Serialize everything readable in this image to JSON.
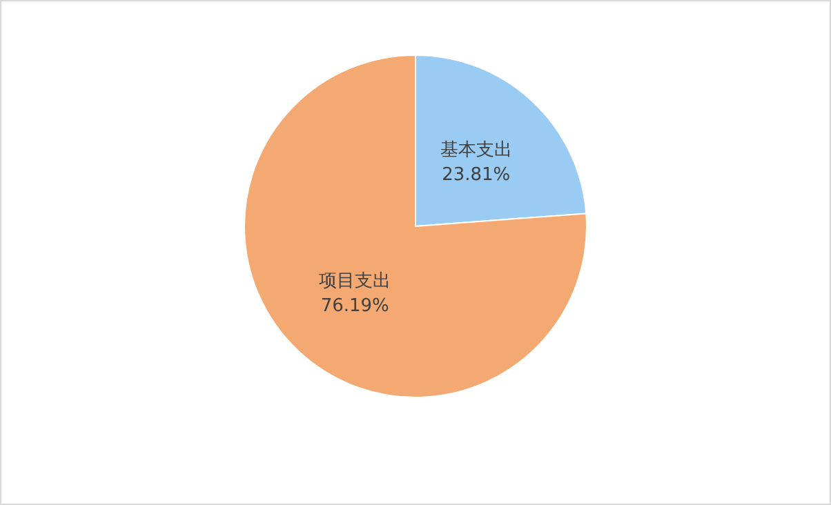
{
  "chart_data": {
    "type": "pie",
    "categories": [
      "基本支出",
      "项目支出"
    ],
    "values": [
      23.81,
      76.19
    ],
    "colors": [
      "#99cbf3",
      "#f4a973"
    ],
    "value_labels": [
      "23.81%",
      "76.19%"
    ]
  }
}
